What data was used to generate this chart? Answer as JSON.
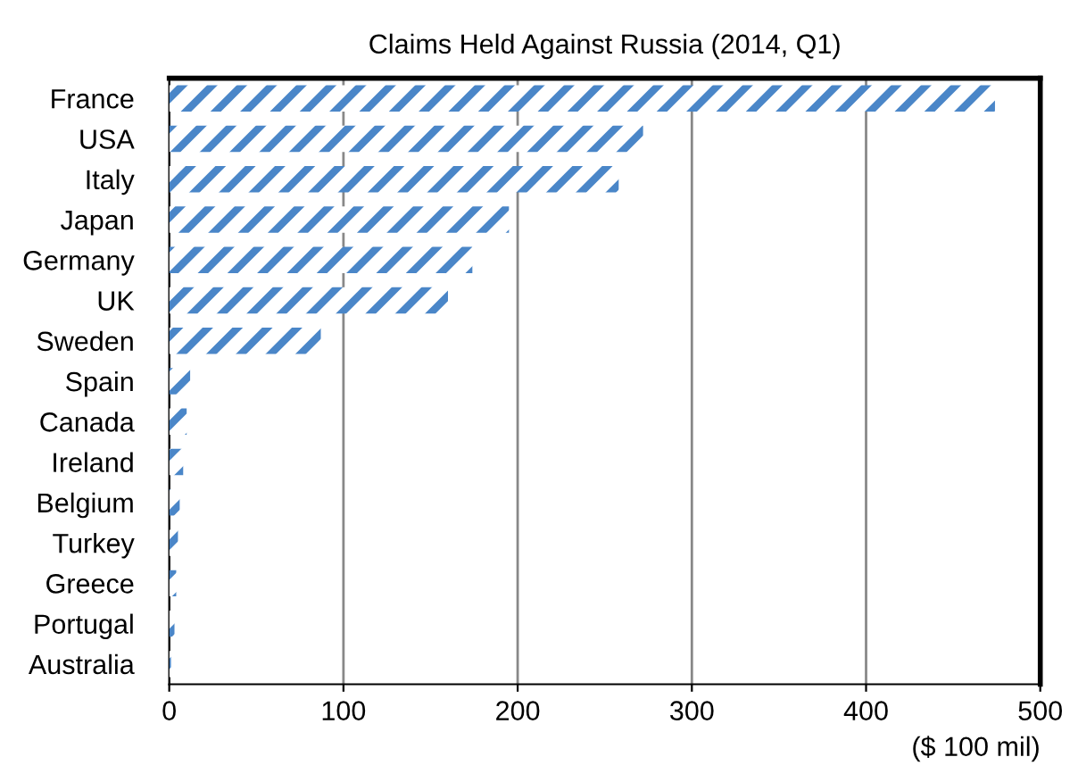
{
  "chart_data": {
    "type": "bar",
    "orientation": "horizontal",
    "title": "Claims Held Against Russia (2014, Q1)",
    "xlabel": "($ 100 mil)",
    "categories": [
      "France",
      "USA",
      "Italy",
      "Japan",
      "Germany",
      "UK",
      "Sweden",
      "Spain",
      "Canada",
      "Ireland",
      "Belgium",
      "Turkey",
      "Greece",
      "Portugal",
      "Australia"
    ],
    "values": [
      474,
      272,
      258,
      195,
      174,
      160,
      87,
      12,
      10,
      8,
      6,
      5,
      4,
      3,
      1
    ],
    "color": "#4a86c8",
    "xlim": [
      0,
      500
    ],
    "xticks": [
      0,
      100,
      200,
      300,
      400,
      500
    ],
    "grid": "x"
  }
}
